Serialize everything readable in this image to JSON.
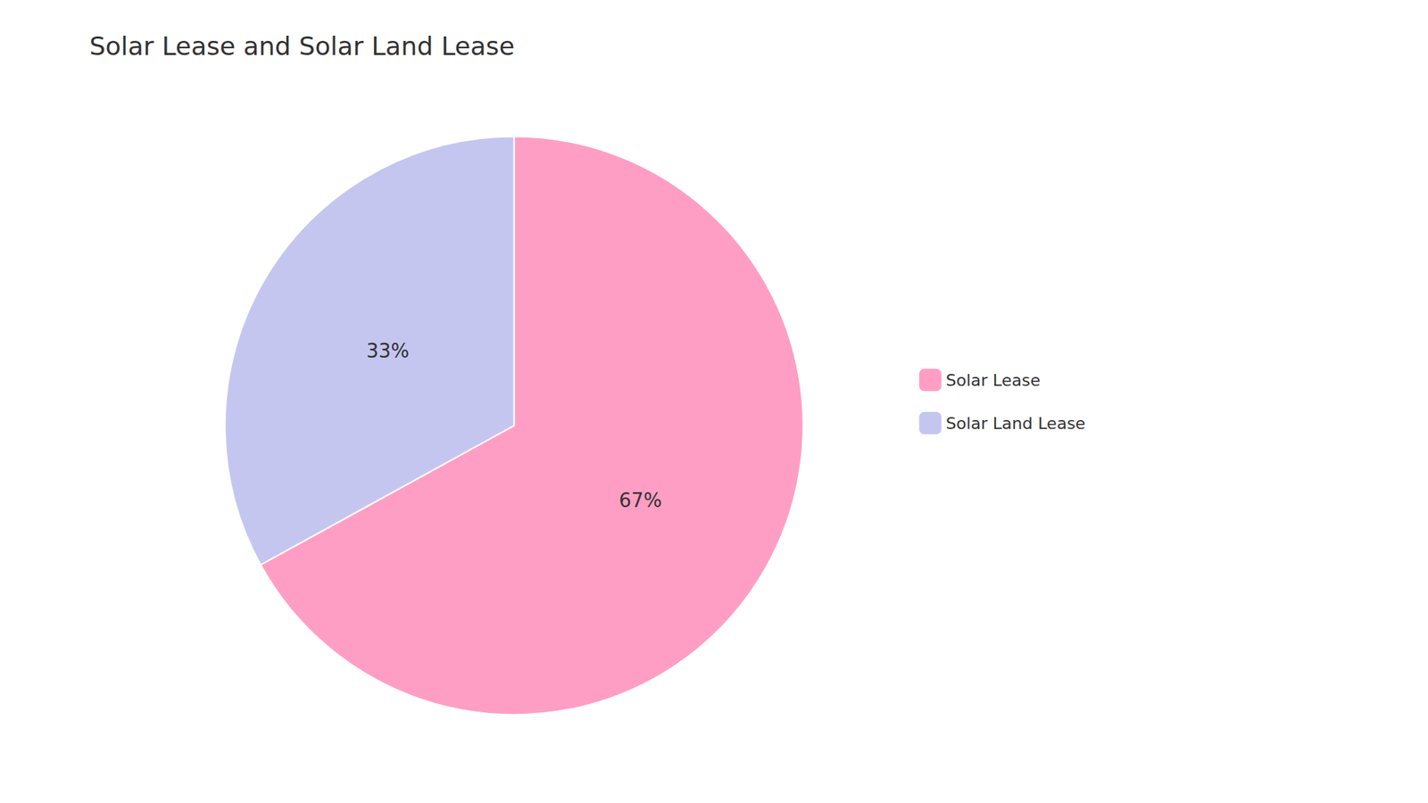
{
  "chart_data": {
    "type": "pie",
    "title": "Solar Lease and Solar Land Lease",
    "categories": [
      "Solar Lease",
      "Solar Land Lease"
    ],
    "values": [
      67,
      33
    ],
    "value_labels": [
      "67%",
      "33%"
    ],
    "colors": [
      "#FF9EC4",
      "#C5C6F0"
    ],
    "data_labels": true,
    "legend": "right"
  }
}
